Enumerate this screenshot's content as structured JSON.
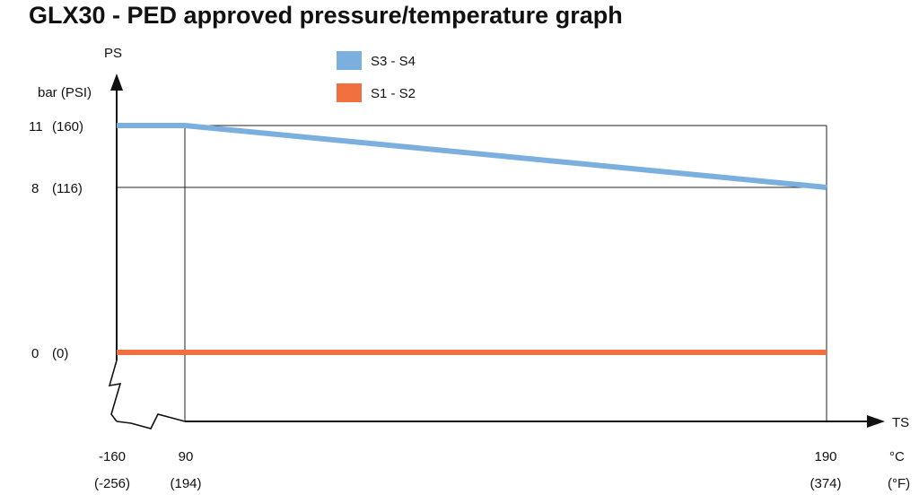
{
  "title": "GLX30 - PED approved pressure/temperature graph",
  "chart_data": {
    "type": "line",
    "title": "GLX30 - PED approved pressure/temperature graph",
    "ylabel": "PS",
    "yunit": "bar (PSI)",
    "xlabel": "TS",
    "xunit_c": "°C",
    "xunit_f": "(°F)",
    "x_ticks": [
      {
        "c": "-160",
        "f": "(-256)"
      },
      {
        "c": "90",
        "f": "(194)"
      },
      {
        "c": "190",
        "f": "(374)"
      }
    ],
    "y_ticks": [
      {
        "bar": "11",
        "psi": "(160)"
      },
      {
        "bar": "8",
        "psi": "(116)"
      },
      {
        "bar": "0",
        "psi": "(0)"
      }
    ],
    "series": [
      {
        "name": "S3 - S4",
        "color": "#7BAFDE",
        "points": [
          {
            "x": -160,
            "y": 11
          },
          {
            "x": 90,
            "y": 11
          },
          {
            "x": 190,
            "y": 8
          }
        ]
      },
      {
        "name": "S1 - S2",
        "color": "#F07040",
        "points": [
          {
            "x": -160,
            "y": 0
          },
          {
            "x": 190,
            "y": 0
          }
        ]
      }
    ],
    "legend_position": "top-center",
    "axis_breaks": true
  }
}
